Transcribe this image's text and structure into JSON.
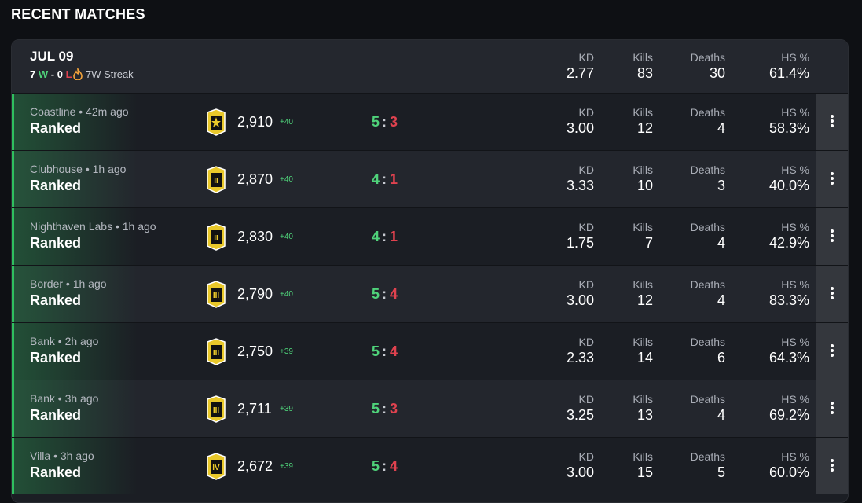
{
  "title": "RECENT MATCHES",
  "summary": {
    "date": "JUL 09",
    "record": {
      "wins": "7",
      "win_mark": "W",
      "separator": "-",
      "losses": "0",
      "loss_mark": "L"
    },
    "streak": "7W Streak",
    "stats": [
      {
        "label": "KD",
        "value": "2.77"
      },
      {
        "label": "Kills",
        "value": "83"
      },
      {
        "label": "Deaths",
        "value": "30"
      },
      {
        "label": "HS %",
        "value": "61.4%"
      }
    ]
  },
  "matches": [
    {
      "map": "Coastline • 42m ago",
      "mode": "Ranked",
      "rating": "2,910",
      "delta": "+40",
      "score_for": "5",
      "score_sep": ":",
      "score_against": "3",
      "stats": [
        {
          "label": "KD",
          "value": "3.00"
        },
        {
          "label": "Kills",
          "value": "12"
        },
        {
          "label": "Deaths",
          "value": "4"
        },
        {
          "label": "HS %",
          "value": "58.3%"
        }
      ]
    },
    {
      "map": "Clubhouse • 1h ago",
      "mode": "Ranked",
      "tier": "II",
      "rating": "2,870",
      "delta": "+40",
      "score_for": "4",
      "score_sep": ":",
      "score_against": "1",
      "stats": [
        {
          "label": "KD",
          "value": "3.33"
        },
        {
          "label": "Kills",
          "value": "10"
        },
        {
          "label": "Deaths",
          "value": "3"
        },
        {
          "label": "HS %",
          "value": "40.0%"
        }
      ]
    },
    {
      "map": "Nighthaven Labs • 1h ago",
      "mode": "Ranked",
      "tier": "II",
      "rating": "2,830",
      "delta": "+40",
      "score_for": "4",
      "score_sep": ":",
      "score_against": "1",
      "stats": [
        {
          "label": "KD",
          "value": "1.75"
        },
        {
          "label": "Kills",
          "value": "7"
        },
        {
          "label": "Deaths",
          "value": "4"
        },
        {
          "label": "HS %",
          "value": "42.9%"
        }
      ]
    },
    {
      "map": "Border • 1h ago",
      "mode": "Ranked",
      "tier": "III",
      "rating": "2,790",
      "delta": "+40",
      "score_for": "5",
      "score_sep": ":",
      "score_against": "4",
      "stats": [
        {
          "label": "KD",
          "value": "3.00"
        },
        {
          "label": "Kills",
          "value": "12"
        },
        {
          "label": "Deaths",
          "value": "4"
        },
        {
          "label": "HS %",
          "value": "83.3%"
        }
      ]
    },
    {
      "map": "Bank • 2h ago",
      "mode": "Ranked",
      "tier": "III",
      "rating": "2,750",
      "delta": "+39",
      "score_for": "5",
      "score_sep": ":",
      "score_against": "4",
      "stats": [
        {
          "label": "KD",
          "value": "2.33"
        },
        {
          "label": "Kills",
          "value": "14"
        },
        {
          "label": "Deaths",
          "value": "6"
        },
        {
          "label": "HS %",
          "value": "64.3%"
        }
      ]
    },
    {
      "map": "Bank • 3h ago",
      "mode": "Ranked",
      "tier": "III",
      "rating": "2,711",
      "delta": "+39",
      "score_for": "5",
      "score_sep": ":",
      "score_against": "3",
      "stats": [
        {
          "label": "KD",
          "value": "3.25"
        },
        {
          "label": "Kills",
          "value": "13"
        },
        {
          "label": "Deaths",
          "value": "4"
        },
        {
          "label": "HS %",
          "value": "69.2%"
        }
      ]
    },
    {
      "map": "Villa • 3h ago",
      "mode": "Ranked",
      "tier": "IV",
      "rating": "2,672",
      "delta": "+39",
      "score_for": "5",
      "score_sep": ":",
      "score_against": "4",
      "stats": [
        {
          "label": "KD",
          "value": "3.00"
        },
        {
          "label": "Kills",
          "value": "15"
        },
        {
          "label": "Deaths",
          "value": "5"
        },
        {
          "label": "HS %",
          "value": "60.0%"
        }
      ]
    }
  ]
}
